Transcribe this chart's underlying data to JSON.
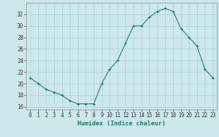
{
  "x": [
    0,
    1,
    2,
    3,
    4,
    5,
    6,
    7,
    8,
    9,
    10,
    11,
    12,
    13,
    14,
    15,
    16,
    17,
    18,
    19,
    20,
    21,
    22,
    23
  ],
  "y": [
    21.0,
    20.0,
    19.0,
    18.5,
    18.0,
    17.0,
    16.5,
    16.5,
    16.5,
    20.0,
    22.5,
    24.0,
    27.0,
    30.0,
    30.0,
    31.5,
    32.5,
    33.0,
    32.5,
    29.5,
    28.0,
    26.5,
    22.5,
    21.0
  ],
  "line_color": "#1a7a6e",
  "marker": "+",
  "bg_color": "#cce8e8",
  "grid_color": "#aacfcf",
  "xlabel": "Humidex (Indice chaleur)",
  "xlim": [
    -0.5,
    23.5
  ],
  "ylim": [
    15.5,
    34
  ],
  "yticks": [
    16,
    18,
    20,
    22,
    24,
    26,
    28,
    30,
    32
  ],
  "xtick_labels": [
    "0",
    "1",
    "2",
    "3",
    "4",
    "5",
    "6",
    "7",
    "8",
    "9",
    "10",
    "11",
    "12",
    "13",
    "14",
    "15",
    "16",
    "17",
    "18",
    "19",
    "20",
    "21",
    "22",
    "23"
  ],
  "tick_fontsize": 5.5,
  "label_fontsize": 6.5
}
